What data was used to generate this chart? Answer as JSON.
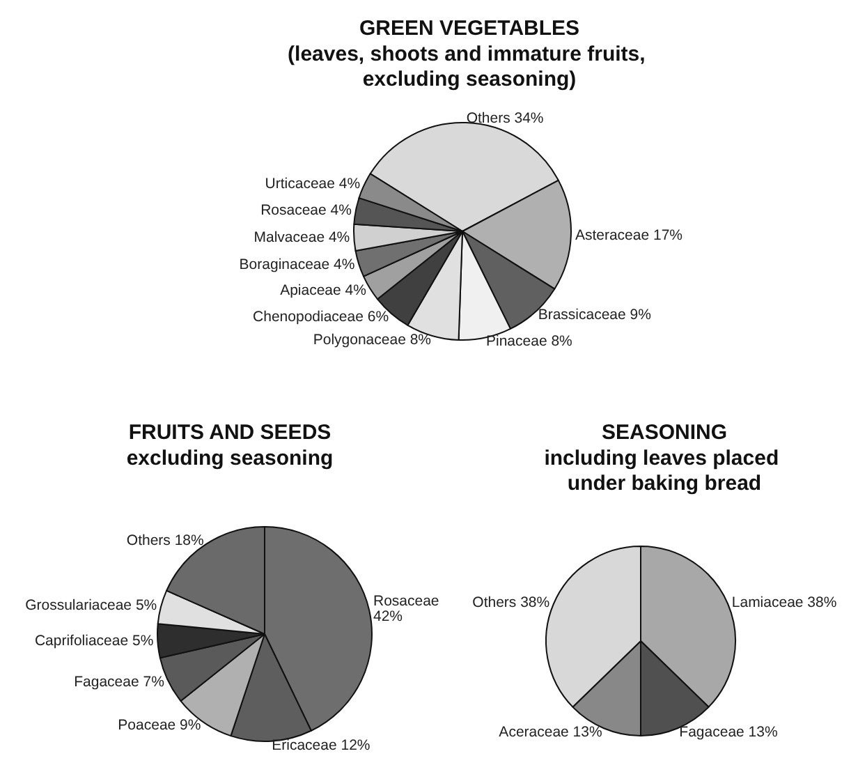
{
  "chart_data": [
    {
      "type": "pie",
      "title": "GREEN VEGETABLES",
      "subtitle": "(leaves, shoots and immature fruits, excluding seasoning)",
      "categories": [
        "Others",
        "Asteraceae",
        "Brassicaceae",
        "Pinaceae",
        "Polygonaceae",
        "Chenopodiaceae",
        "Apiaceae",
        "Boraginaceae",
        "Malvaceae",
        "Rosaceae",
        "Urticaceae"
      ],
      "values": [
        34,
        17,
        9,
        8,
        8,
        6,
        4,
        4,
        4,
        4,
        4
      ],
      "value_labels": [
        "34%",
        "17%",
        "9%",
        "8%",
        "8%",
        "6%",
        "4%",
        "4%",
        "4%",
        "4%",
        "4%"
      ],
      "colors": [
        "#d9d9d9",
        "#b0b0b0",
        "#606060",
        "#f0f0f0",
        "#e0e0e0",
        "#404040",
        "#a0a0a0",
        "#707070",
        "#d0d0d0",
        "#555555",
        "#8a8a8a"
      ],
      "legend": false
    },
    {
      "type": "pie",
      "title": "FRUITS AND SEEDS",
      "subtitle": "excluding seasoning",
      "categories": [
        "Rosaceae",
        "Ericaceae",
        "Poaceae",
        "Fagaceae",
        "Caprifoliaceae",
        "Grossulariaceae",
        "Others"
      ],
      "values": [
        42,
        12,
        9,
        7,
        5,
        5,
        18
      ],
      "value_labels": [
        "42%",
        "12%",
        "9%",
        "7%",
        "5%",
        "5%",
        "18%"
      ],
      "colors": [
        "#6e6e6e",
        "#5e5e5e",
        "#b0b0b0",
        "#5a5a5a",
        "#2e2e2e",
        "#e0e0e0",
        "#6a6a6a"
      ],
      "legend": false
    },
    {
      "type": "pie",
      "title": "SEASONING",
      "subtitle": "including leaves placed under baking bread",
      "categories": [
        "Lamiaceae",
        "Fagaceae",
        "Aceraceae",
        "Others"
      ],
      "values": [
        38,
        13,
        13,
        38
      ],
      "value_labels": [
        "38%",
        "13%",
        "13%",
        "38%"
      ],
      "colors": [
        "#a8a8a8",
        "#505050",
        "#888888",
        "#d8d8d8"
      ],
      "legend": false
    }
  ]
}
